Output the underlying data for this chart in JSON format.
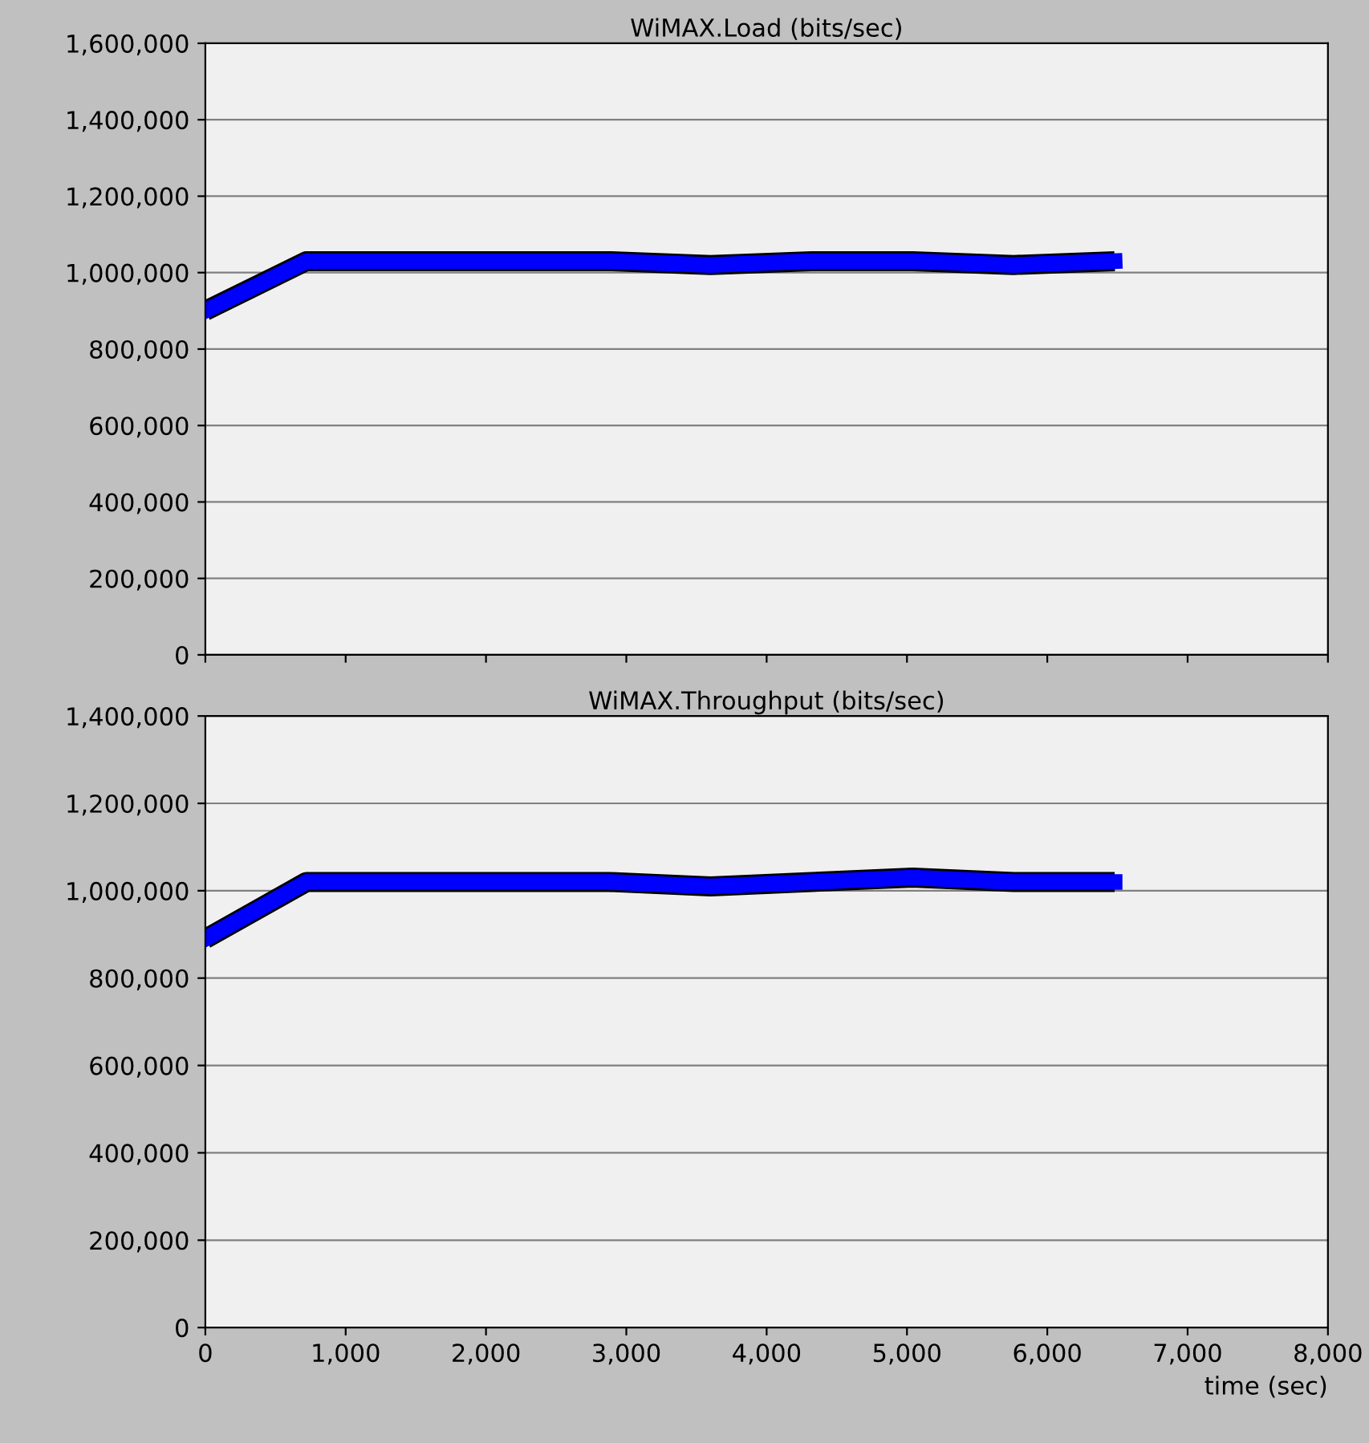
{
  "chart_data": [
    {
      "type": "line",
      "title": "WiMAX.Load (bits/sec)",
      "x": [
        0,
        720,
        1440,
        2160,
        2880,
        3600,
        4320,
        5040,
        5760,
        6480
      ],
      "series": [
        {
          "color": "#0000ff",
          "values": [
            900000,
            1030000,
            1030000,
            1030000,
            1030000,
            1020000,
            1030000,
            1030000,
            1020000,
            1030000
          ]
        }
      ],
      "xlim": [
        0,
        8000
      ],
      "ylim": [
        0,
        1600000
      ],
      "yticks": [
        {
          "value": 0,
          "label": "0"
        },
        {
          "value": 200000,
          "label": "200,000"
        },
        {
          "value": 400000,
          "label": "400,000"
        },
        {
          "value": 600000,
          "label": "600,000"
        },
        {
          "value": 800000,
          "label": "800,000"
        },
        {
          "value": 1000000,
          "label": "1,000,000"
        },
        {
          "value": 1200000,
          "label": "1,200,000"
        },
        {
          "value": 1400000,
          "label": "1,400,000"
        },
        {
          "value": 1600000,
          "label": "1,600,000"
        }
      ],
      "grid": "y",
      "tick_labels": "y",
      "line_style": "solid"
    },
    {
      "type": "line",
      "title": "WiMAX.Throughput (bits/sec)",
      "xlabel": "time (sec)",
      "x": [
        0,
        720,
        1440,
        2160,
        2880,
        3600,
        4320,
        5040,
        5760,
        6480
      ],
      "series": [
        {
          "color": "#0000ff",
          "values": [
            890000,
            1020000,
            1020000,
            1020000,
            1020000,
            1010000,
            1020000,
            1030000,
            1020000,
            1020000
          ]
        }
      ],
      "xlim": [
        0,
        8000
      ],
      "xticks": [
        {
          "value": 0,
          "label": "0"
        },
        {
          "value": 1000,
          "label": "1,000"
        },
        {
          "value": 2000,
          "label": "2,000"
        },
        {
          "value": 3000,
          "label": "3,000"
        },
        {
          "value": 4000,
          "label": "4,000"
        },
        {
          "value": 5000,
          "label": "5,000"
        },
        {
          "value": 6000,
          "label": "6,000"
        },
        {
          "value": 7000,
          "label": "7,000"
        },
        {
          "value": 8000,
          "label": "8,000"
        }
      ],
      "ylim": [
        0,
        1400000
      ],
      "yticks": [
        {
          "value": 0,
          "label": "0"
        },
        {
          "value": 200000,
          "label": "200,000"
        },
        {
          "value": 400000,
          "label": "400,000"
        },
        {
          "value": 600000,
          "label": "600,000"
        },
        {
          "value": 800000,
          "label": "800,000"
        },
        {
          "value": 1000000,
          "label": "1,000,000"
        },
        {
          "value": 1200000,
          "label": "1,200,000"
        },
        {
          "value": 1400000,
          "label": "1,400,000"
        }
      ],
      "grid": "y",
      "line_style": "solid"
    }
  ]
}
